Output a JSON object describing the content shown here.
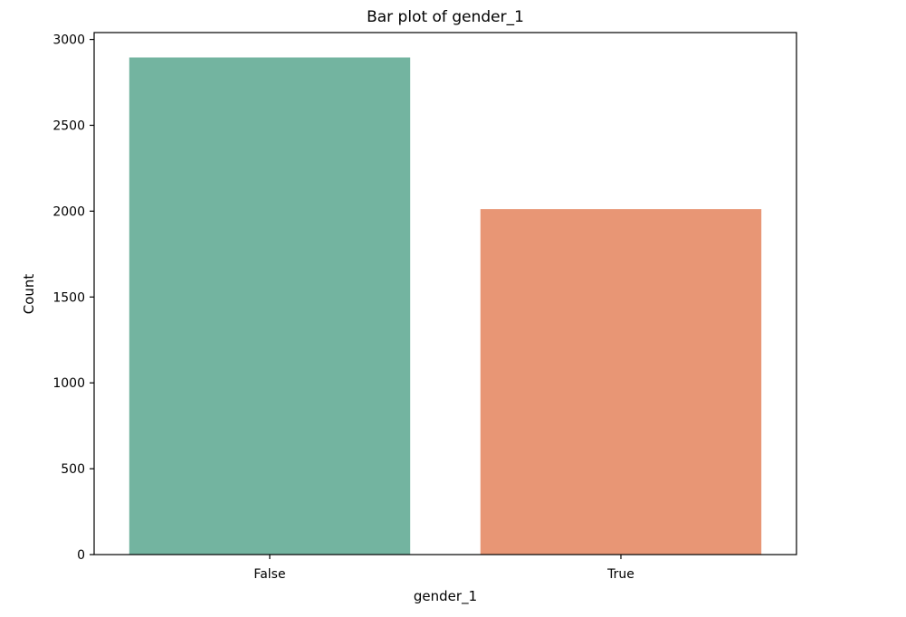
{
  "chart_data": {
    "type": "bar",
    "title": "Bar plot of gender_1",
    "xlabel": "gender_1",
    "ylabel": "Count",
    "categories": [
      "False",
      "True"
    ],
    "values": [
      2895,
      2012
    ],
    "colors": [
      "#73b4a0",
      "#e89675"
    ],
    "ylim": [
      0,
      3040
    ],
    "yticks": [
      0,
      500,
      1000,
      1500,
      2000,
      2500,
      3000
    ],
    "grid": false
  }
}
